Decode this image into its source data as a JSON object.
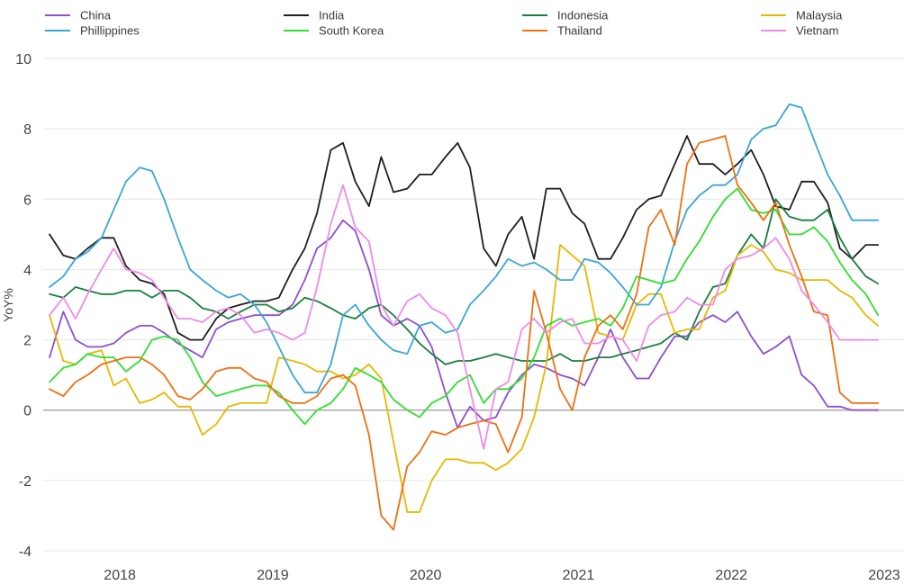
{
  "chart_data": {
    "type": "line",
    "ylabel": "YoY%",
    "ylim": [
      -4,
      10
    ],
    "yticks": [
      "10",
      "8",
      "6",
      "4",
      "2",
      "0",
      "-2",
      "-4"
    ],
    "ytick_values": [
      10,
      8,
      6,
      4,
      2,
      0,
      -2,
      -4
    ],
    "xlim": [
      2017.54,
      2023.0
    ],
    "xticks": [
      "2018",
      "2019",
      "2020",
      "2021",
      "2022",
      "2023"
    ],
    "xtick_values": [
      2018.0,
      2019.0,
      2020.0,
      2021.0,
      2022.0,
      2023.0
    ],
    "grid": "horizontal",
    "legend_position": "top",
    "series": [
      {
        "name": "China",
        "color": "#8d4fd1",
        "x": [
          2017.54,
          2017.63,
          2017.71,
          2017.79,
          2017.88,
          2017.96,
          2018.04,
          2018.13,
          2018.21,
          2018.29,
          2018.38,
          2018.46,
          2018.54,
          2018.63,
          2018.71,
          2018.79,
          2018.88,
          2018.96,
          2019.04,
          2019.13,
          2019.21,
          2019.29,
          2019.38,
          2019.46,
          2019.54,
          2019.63,
          2019.71,
          2019.79,
          2019.88,
          2019.96,
          2020.04,
          2020.13,
          2020.21,
          2020.29,
          2020.38,
          2020.46,
          2020.54,
          2020.63,
          2020.71,
          2020.79,
          2020.88,
          2020.96,
          2021.04,
          2021.13,
          2021.21,
          2021.29,
          2021.38,
          2021.46,
          2021.54,
          2021.63,
          2021.71,
          2021.79,
          2021.88,
          2021.96,
          2022.04,
          2022.13,
          2022.21,
          2022.29,
          2022.38,
          2022.46,
          2022.54,
          2022.63,
          2022.71,
          2022.79,
          2022.88,
          2022.96
        ],
        "values": [
          1.5,
          2.8,
          2.0,
          1.8,
          1.8,
          1.9,
          2.2,
          2.4,
          2.4,
          2.2,
          1.9,
          1.7,
          1.5,
          2.3,
          2.5,
          2.6,
          2.7,
          2.7,
          2.7,
          3.0,
          3.7,
          4.6,
          4.9,
          5.4,
          5.1,
          4.0,
          2.7,
          2.4,
          2.6,
          2.4,
          1.8,
          0.5,
          -0.5,
          0.1,
          -0.3,
          -0.2,
          0.5,
          1.0,
          1.3,
          1.2,
          1.0,
          0.9,
          0.7,
          1.5,
          2.3,
          1.5,
          0.9,
          0.9,
          1.5,
          2.1,
          2.1,
          2.5,
          2.7,
          2.5,
          2.8,
          2.1,
          1.6,
          1.8,
          2.1,
          1.0,
          0.7,
          0.1,
          0.1,
          0.0,
          0.0,
          0.0
        ]
      },
      {
        "name": "India",
        "color": "#1f1f1f",
        "x": [
          2017.54,
          2017.63,
          2017.71,
          2017.79,
          2017.88,
          2017.96,
          2018.04,
          2018.13,
          2018.21,
          2018.29,
          2018.38,
          2018.46,
          2018.54,
          2018.63,
          2018.71,
          2018.79,
          2018.88,
          2018.96,
          2019.04,
          2019.13,
          2019.21,
          2019.29,
          2019.38,
          2019.46,
          2019.54,
          2019.63,
          2019.71,
          2019.79,
          2019.88,
          2019.96,
          2020.04,
          2020.13,
          2020.21,
          2020.29,
          2020.38,
          2020.46,
          2020.54,
          2020.63,
          2020.71,
          2020.79,
          2020.88,
          2020.96,
          2021.04,
          2021.13,
          2021.21,
          2021.29,
          2021.38,
          2021.46,
          2021.54,
          2021.63,
          2021.71,
          2021.79,
          2021.88,
          2021.96,
          2022.04,
          2022.13,
          2022.21,
          2022.29,
          2022.38,
          2022.46,
          2022.54,
          2022.63,
          2022.71,
          2022.79,
          2022.88,
          2022.96
        ],
        "values": [
          5.0,
          4.4,
          4.3,
          4.6,
          4.9,
          4.9,
          4.1,
          3.7,
          3.6,
          3.3,
          2.2,
          2.0,
          2.0,
          2.6,
          2.9,
          3.0,
          3.1,
          3.1,
          3.2,
          4.0,
          4.6,
          5.6,
          7.4,
          7.6,
          6.5,
          5.8,
          7.2,
          6.2,
          6.3,
          6.7,
          6.7,
          7.2,
          7.6,
          6.9,
          4.6,
          4.1,
          5.0,
          5.5,
          4.3,
          6.3,
          6.3,
          5.6,
          5.3,
          4.3,
          4.3,
          4.9,
          5.7,
          6.0,
          6.1,
          7.0,
          7.8,
          7.0,
          7.0,
          6.7,
          7.0,
          7.4,
          6.7,
          5.8,
          5.7,
          6.5,
          6.5,
          5.9,
          4.6,
          4.3,
          4.7,
          4.7
        ]
      },
      {
        "name": "Indonesia",
        "color": "#1a7f3c",
        "x": [
          2017.54,
          2017.63,
          2017.71,
          2017.79,
          2017.88,
          2017.96,
          2018.04,
          2018.13,
          2018.21,
          2018.29,
          2018.38,
          2018.46,
          2018.54,
          2018.63,
          2018.71,
          2018.79,
          2018.88,
          2018.96,
          2019.04,
          2019.13,
          2019.21,
          2019.29,
          2019.38,
          2019.46,
          2019.54,
          2019.63,
          2019.71,
          2019.79,
          2019.88,
          2019.96,
          2020.04,
          2020.13,
          2020.21,
          2020.29,
          2020.38,
          2020.46,
          2020.54,
          2020.63,
          2020.71,
          2020.79,
          2020.88,
          2020.96,
          2021.04,
          2021.13,
          2021.21,
          2021.29,
          2021.38,
          2021.46,
          2021.54,
          2021.63,
          2021.71,
          2021.79,
          2021.88,
          2021.96,
          2022.04,
          2022.13,
          2022.21,
          2022.29,
          2022.38,
          2022.46,
          2022.54,
          2022.63,
          2022.71,
          2022.79,
          2022.88,
          2022.96
        ],
        "values": [
          3.3,
          3.2,
          3.5,
          3.4,
          3.3,
          3.3,
          3.4,
          3.4,
          3.2,
          3.4,
          3.4,
          3.2,
          2.9,
          2.8,
          2.6,
          2.8,
          3.0,
          3.0,
          2.8,
          2.9,
          3.2,
          3.1,
          2.9,
          2.7,
          2.6,
          2.9,
          3.0,
          2.7,
          2.3,
          1.9,
          1.6,
          1.3,
          1.4,
          1.4,
          1.5,
          1.6,
          1.5,
          1.4,
          1.4,
          1.4,
          1.6,
          1.4,
          1.4,
          1.5,
          1.5,
          1.6,
          1.7,
          1.8,
          1.9,
          2.2,
          2.0,
          2.8,
          3.5,
          3.6,
          4.4,
          5.0,
          4.6,
          6.0,
          5.5,
          5.4,
          5.4,
          5.7,
          4.9,
          4.3,
          3.8,
          3.6
        ]
      },
      {
        "name": "Malaysia",
        "color": "#e8b800",
        "x": [
          2017.54,
          2017.63,
          2017.71,
          2017.79,
          2017.88,
          2017.96,
          2018.04,
          2018.13,
          2018.21,
          2018.29,
          2018.38,
          2018.46,
          2018.54,
          2018.63,
          2018.71,
          2018.79,
          2018.88,
          2018.96,
          2019.04,
          2019.13,
          2019.21,
          2019.29,
          2019.38,
          2019.46,
          2019.54,
          2019.63,
          2019.71,
          2019.79,
          2019.88,
          2019.96,
          2020.04,
          2020.13,
          2020.21,
          2020.29,
          2020.38,
          2020.46,
          2020.54,
          2020.63,
          2020.71,
          2020.79,
          2020.88,
          2020.96,
          2021.04,
          2021.13,
          2021.21,
          2021.29,
          2021.38,
          2021.46,
          2021.54,
          2021.63,
          2021.71,
          2021.79,
          2021.88,
          2021.96,
          2022.04,
          2022.13,
          2022.21,
          2022.29,
          2022.38,
          2022.46,
          2022.54,
          2022.63,
          2022.71,
          2022.79,
          2022.88,
          2022.96
        ],
        "values": [
          2.7,
          1.4,
          1.3,
          1.6,
          1.7,
          0.7,
          0.9,
          0.2,
          0.3,
          0.5,
          0.1,
          0.1,
          -0.7,
          -0.4,
          0.1,
          0.2,
          0.2,
          0.2,
          1.5,
          1.4,
          1.3,
          1.1,
          1.1,
          0.9,
          1.0,
          1.3,
          0.9,
          -0.9,
          -2.9,
          -2.9,
          -2.0,
          -1.4,
          -1.4,
          -1.5,
          -1.5,
          -1.7,
          -1.5,
          -1.1,
          -0.2,
          1.3,
          4.7,
          4.4,
          4.1,
          2.2,
          2.1,
          2.0,
          3.0,
          3.3,
          3.3,
          2.2,
          2.3,
          2.3,
          3.2,
          3.4,
          4.4,
          4.7,
          4.5,
          4.0,
          3.9,
          3.7,
          3.7,
          3.7,
          3.4,
          3.2,
          2.7,
          2.4
        ]
      },
      {
        "name": "Phillippines",
        "color": "#3aa6d8",
        "x": [
          2017.54,
          2017.63,
          2017.71,
          2017.79,
          2017.88,
          2017.96,
          2018.04,
          2018.13,
          2018.21,
          2018.29,
          2018.38,
          2018.46,
          2018.54,
          2018.63,
          2018.71,
          2018.79,
          2018.88,
          2018.96,
          2019.04,
          2019.13,
          2019.21,
          2019.29,
          2019.38,
          2019.46,
          2019.54,
          2019.63,
          2019.71,
          2019.79,
          2019.88,
          2019.96,
          2020.04,
          2020.13,
          2020.21,
          2020.29,
          2020.38,
          2020.46,
          2020.54,
          2020.63,
          2020.71,
          2020.79,
          2020.88,
          2020.96,
          2021.04,
          2021.13,
          2021.21,
          2021.29,
          2021.38,
          2021.46,
          2021.54,
          2021.63,
          2021.71,
          2021.79,
          2021.88,
          2021.96,
          2022.04,
          2022.13,
          2022.21,
          2022.29,
          2022.38,
          2022.46,
          2022.54,
          2022.63,
          2022.71,
          2022.79,
          2022.88,
          2022.96
        ],
        "values": [
          3.5,
          3.8,
          4.3,
          4.5,
          4.9,
          5.7,
          6.5,
          6.9,
          6.8,
          6.0,
          4.9,
          4.0,
          3.7,
          3.4,
          3.2,
          3.3,
          3.0,
          2.5,
          1.8,
          1.0,
          0.5,
          0.5,
          1.3,
          2.7,
          3.0,
          2.4,
          2.0,
          1.7,
          1.6,
          2.4,
          2.5,
          2.2,
          2.3,
          3.0,
          3.4,
          3.8,
          4.3,
          4.1,
          4.2,
          4.0,
          3.7,
          3.7,
          4.3,
          4.2,
          3.9,
          3.5,
          3.0,
          3.0,
          3.5,
          4.8,
          5.7,
          6.1,
          6.4,
          6.4,
          6.7,
          7.7,
          8.0,
          8.1,
          8.7,
          8.6,
          7.7,
          6.7,
          6.1,
          5.4,
          5.4,
          5.4
        ]
      },
      {
        "name": "South Korea",
        "color": "#2ee02e",
        "x": [
          2017.54,
          2017.63,
          2017.71,
          2017.79,
          2017.88,
          2017.96,
          2018.04,
          2018.13,
          2018.21,
          2018.29,
          2018.38,
          2018.46,
          2018.54,
          2018.63,
          2018.71,
          2018.79,
          2018.88,
          2018.96,
          2019.04,
          2019.13,
          2019.21,
          2019.29,
          2019.38,
          2019.46,
          2019.54,
          2019.63,
          2019.71,
          2019.79,
          2019.88,
          2019.96,
          2020.04,
          2020.13,
          2020.21,
          2020.29,
          2020.38,
          2020.46,
          2020.54,
          2020.63,
          2020.71,
          2020.79,
          2020.88,
          2020.96,
          2021.04,
          2021.13,
          2021.21,
          2021.29,
          2021.38,
          2021.46,
          2021.54,
          2021.63,
          2021.71,
          2021.79,
          2021.88,
          2021.96,
          2022.04,
          2022.13,
          2022.21,
          2022.29,
          2022.38,
          2022.46,
          2022.54,
          2022.63,
          2022.71,
          2022.79,
          2022.88,
          2022.96
        ],
        "values": [
          0.8,
          1.2,
          1.3,
          1.6,
          1.5,
          1.5,
          1.1,
          1.4,
          2.0,
          2.1,
          2.0,
          1.5,
          0.8,
          0.4,
          0.5,
          0.6,
          0.7,
          0.7,
          0.5,
          0.0,
          -0.4,
          0.0,
          0.2,
          0.6,
          1.2,
          1.0,
          0.8,
          0.3,
          0.0,
          -0.2,
          0.2,
          0.4,
          0.8,
          1.0,
          0.2,
          0.6,
          0.6,
          0.9,
          1.5,
          2.4,
          2.6,
          2.4,
          2.5,
          2.6,
          2.4,
          2.9,
          3.8,
          3.7,
          3.6,
          3.7,
          4.3,
          4.8,
          5.5,
          6.0,
          6.3,
          5.7,
          5.6,
          5.7,
          5.0,
          5.0,
          5.2,
          4.8,
          4.2,
          3.7,
          3.3,
          2.7
        ]
      },
      {
        "name": "Thailand",
        "color": "#f07010",
        "x": [
          2017.54,
          2017.63,
          2017.71,
          2017.79,
          2017.88,
          2017.96,
          2018.04,
          2018.13,
          2018.21,
          2018.29,
          2018.38,
          2018.46,
          2018.54,
          2018.63,
          2018.71,
          2018.79,
          2018.88,
          2018.96,
          2019.04,
          2019.13,
          2019.21,
          2019.29,
          2019.38,
          2019.46,
          2019.54,
          2019.63,
          2019.71,
          2019.79,
          2019.88,
          2019.96,
          2020.04,
          2020.13,
          2020.21,
          2020.29,
          2020.38,
          2020.46,
          2020.54,
          2020.63,
          2020.71,
          2020.79,
          2020.88,
          2020.96,
          2021.04,
          2021.13,
          2021.21,
          2021.29,
          2021.38,
          2021.46,
          2021.54,
          2021.63,
          2021.71,
          2021.79,
          2021.88,
          2021.96,
          2022.04,
          2022.13,
          2022.21,
          2022.29,
          2022.38,
          2022.46,
          2022.54,
          2022.63,
          2022.71,
          2022.79,
          2022.88,
          2022.96
        ],
        "values": [
          0.6,
          0.4,
          0.8,
          1.0,
          1.3,
          1.4,
          1.5,
          1.5,
          1.3,
          1.0,
          0.4,
          0.3,
          0.6,
          1.1,
          1.2,
          1.2,
          0.9,
          0.8,
          0.4,
          0.2,
          0.2,
          0.4,
          0.9,
          1.0,
          0.7,
          -0.7,
          -3.0,
          -3.4,
          -1.6,
          -1.2,
          -0.6,
          -0.7,
          -0.5,
          -0.4,
          -0.3,
          -0.4,
          -1.2,
          -0.2,
          3.4,
          2.2,
          0.6,
          0.0,
          1.5,
          2.4,
          2.7,
          2.3,
          3.3,
          5.2,
          5.7,
          4.7,
          7.0,
          7.6,
          7.7,
          7.8,
          6.4,
          5.9,
          5.4,
          5.9,
          4.7,
          3.8,
          2.8,
          2.7,
          0.5,
          0.2,
          0.2,
          0.2
        ]
      },
      {
        "name": "Vietnam",
        "color": "#f08ae8",
        "x": [
          2017.54,
          2017.63,
          2017.71,
          2017.79,
          2017.88,
          2017.96,
          2018.04,
          2018.13,
          2018.21,
          2018.29,
          2018.38,
          2018.46,
          2018.54,
          2018.63,
          2018.71,
          2018.79,
          2018.88,
          2018.96,
          2019.04,
          2019.13,
          2019.21,
          2019.29,
          2019.38,
          2019.46,
          2019.54,
          2019.63,
          2019.71,
          2019.79,
          2019.88,
          2019.96,
          2020.04,
          2020.13,
          2020.21,
          2020.29,
          2020.38,
          2020.46,
          2020.54,
          2020.63,
          2020.71,
          2020.79,
          2020.88,
          2020.96,
          2021.04,
          2021.13,
          2021.21,
          2021.29,
          2021.38,
          2021.46,
          2021.54,
          2021.63,
          2021.71,
          2021.79,
          2021.88,
          2021.96,
          2022.04,
          2022.13,
          2022.21,
          2022.29,
          2022.38,
          2022.46,
          2022.54,
          2022.63,
          2022.71,
          2022.79,
          2022.88,
          2022.96
        ],
        "values": [
          2.7,
          3.2,
          2.6,
          3.3,
          4.0,
          4.6,
          4.0,
          3.9,
          3.7,
          3.2,
          2.6,
          2.6,
          2.5,
          2.8,
          2.9,
          2.7,
          2.2,
          2.3,
          2.2,
          2.0,
          2.2,
          3.5,
          5.3,
          6.4,
          5.2,
          4.8,
          3.0,
          2.4,
          3.1,
          3.3,
          2.9,
          2.7,
          2.2,
          0.6,
          -1.1,
          0.6,
          0.8,
          2.3,
          2.6,
          2.2,
          2.5,
          2.6,
          1.9,
          1.9,
          2.1,
          2.0,
          1.4,
          2.4,
          2.7,
          2.8,
          3.2,
          3.0,
          3.0,
          4.0,
          4.3,
          4.4,
          4.6,
          4.9,
          4.3,
          3.4,
          3.0,
          2.5,
          2.0,
          2.0,
          2.0,
          2.0
        ]
      }
    ]
  }
}
